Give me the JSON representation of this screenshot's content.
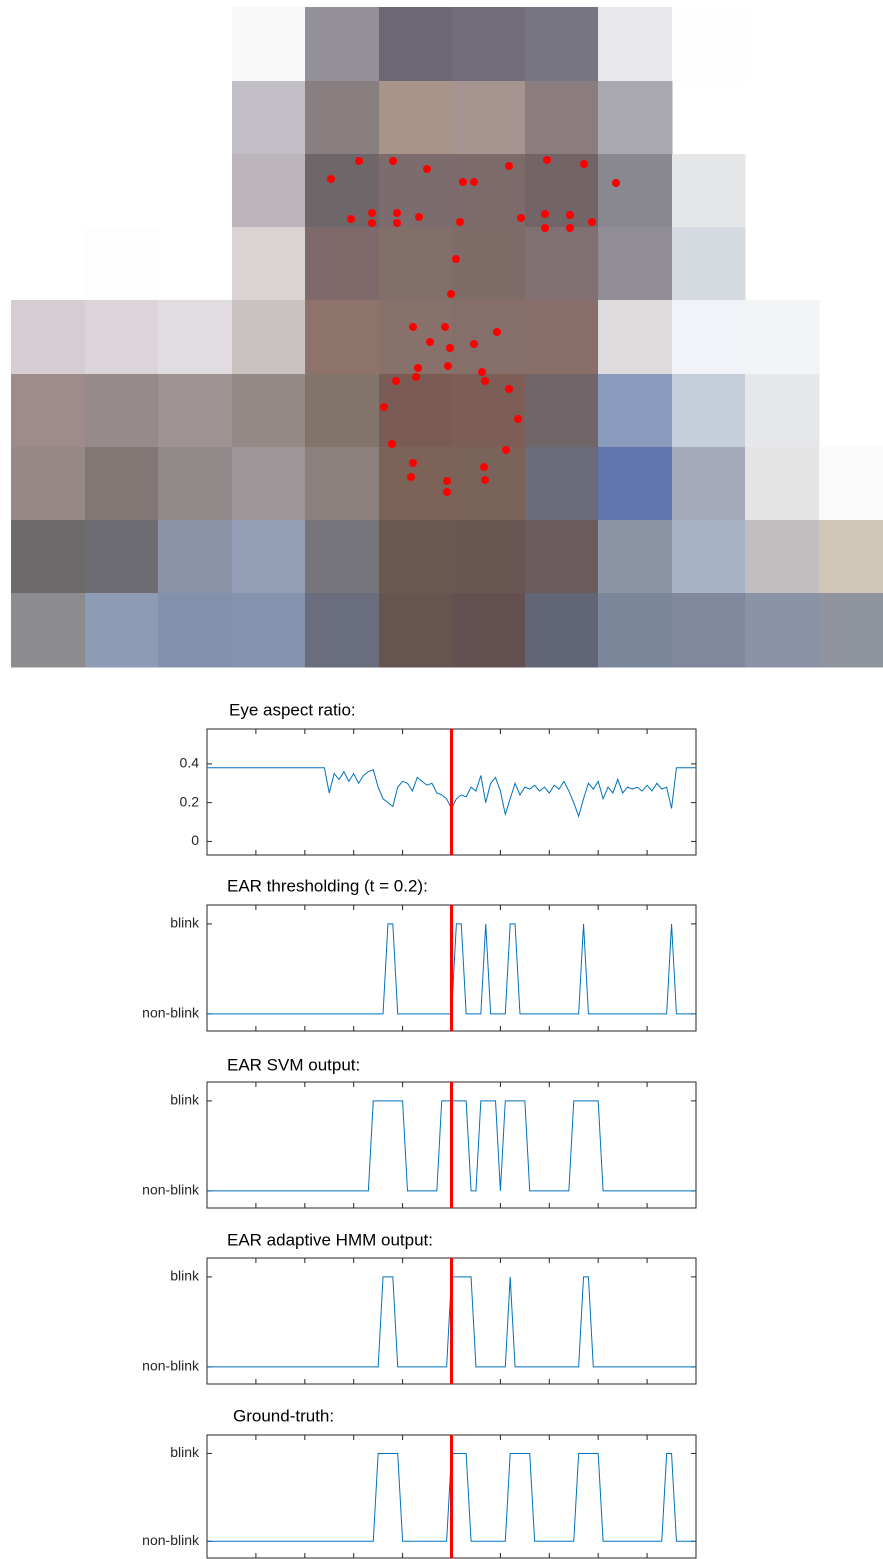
{
  "chart_data": [
    {
      "type": "line",
      "title": "Eye aspect ratio:",
      "color": "#0072bd",
      "cursor_x": 50,
      "cursor_color": "#ff0000",
      "xlim": [
        0,
        100
      ],
      "xticks": [
        0,
        10,
        20,
        30,
        40,
        50,
        60,
        70,
        80,
        90,
        100
      ],
      "ylim": [
        -0.07,
        0.58
      ],
      "yticks": [
        0,
        0.2,
        0.4
      ],
      "values": [
        0.38,
        0.38,
        0.38,
        0.38,
        0.38,
        0.38,
        0.38,
        0.38,
        0.38,
        0.38,
        0.38,
        0.38,
        0.38,
        0.38,
        0.38,
        0.38,
        0.38,
        0.38,
        0.38,
        0.38,
        0.38,
        0.38,
        0.38,
        0.38,
        0.38,
        0.25,
        0.35,
        0.32,
        0.36,
        0.31,
        0.35,
        0.3,
        0.34,
        0.36,
        0.37,
        0.28,
        0.22,
        0.2,
        0.18,
        0.28,
        0.31,
        0.3,
        0.26,
        0.33,
        0.31,
        0.29,
        0.3,
        0.25,
        0.24,
        0.22,
        0.17,
        0.22,
        0.24,
        0.23,
        0.28,
        0.26,
        0.34,
        0.2,
        0.3,
        0.33,
        0.26,
        0.14,
        0.22,
        0.3,
        0.24,
        0.28,
        0.27,
        0.29,
        0.26,
        0.28,
        0.25,
        0.29,
        0.27,
        0.31,
        0.26,
        0.2,
        0.13,
        0.22,
        0.3,
        0.27,
        0.31,
        0.22,
        0.28,
        0.25,
        0.32,
        0.25,
        0.28,
        0.27,
        0.28,
        0.26,
        0.29,
        0.26,
        0.3,
        0.27,
        0.28,
        0.17,
        0.38,
        0.38,
        0.38,
        0.38,
        0.38
      ]
    },
    {
      "type": "line",
      "title": "EAR thresholding (t = 0.2):",
      "color": "#0072bd",
      "cursor_x": 50,
      "cursor_color": "#ff0000",
      "xlim": [
        0,
        100
      ],
      "xticks": [
        0,
        10,
        20,
        30,
        40,
        50,
        60,
        70,
        80,
        90,
        100
      ],
      "ylim": [
        -0.19,
        1.21
      ],
      "yticks": [
        {
          "value": 0,
          "label": "non-blink"
        },
        {
          "value": 1,
          "label": "blink"
        }
      ],
      "values": [
        0,
        0,
        0,
        0,
        0,
        0,
        0,
        0,
        0,
        0,
        0,
        0,
        0,
        0,
        0,
        0,
        0,
        0,
        0,
        0,
        0,
        0,
        0,
        0,
        0,
        0,
        0,
        0,
        0,
        0,
        0,
        0,
        0,
        0,
        0,
        0,
        0,
        1,
        1,
        0,
        0,
        0,
        0,
        0,
        0,
        0,
        0,
        0,
        0,
        0,
        0,
        1,
        1,
        0,
        0,
        0,
        0,
        1,
        0,
        0,
        0,
        0,
        1,
        1,
        0,
        0,
        0,
        0,
        0,
        0,
        0,
        0,
        0,
        0,
        0,
        0,
        0,
        1,
        0,
        0,
        0,
        0,
        0,
        0,
        0,
        0,
        0,
        0,
        0,
        0,
        0,
        0,
        0,
        0,
        0,
        1,
        0,
        0,
        0,
        0,
        0
      ]
    },
    {
      "type": "line",
      "title": "EAR SVM output:",
      "color": "#0072bd",
      "cursor_x": 50,
      "cursor_color": "#ff0000",
      "xlim": [
        0,
        100
      ],
      "xticks": [
        0,
        10,
        20,
        30,
        40,
        50,
        60,
        70,
        80,
        90,
        100
      ],
      "ylim": [
        -0.19,
        1.21
      ],
      "yticks": [
        {
          "value": 0,
          "label": "non-blink"
        },
        {
          "value": 1,
          "label": "blink"
        }
      ],
      "values": [
        0,
        0,
        0,
        0,
        0,
        0,
        0,
        0,
        0,
        0,
        0,
        0,
        0,
        0,
        0,
        0,
        0,
        0,
        0,
        0,
        0,
        0,
        0,
        0,
        0,
        0,
        0,
        0,
        0,
        0,
        0,
        0,
        0,
        0,
        1,
        1,
        1,
        1,
        1,
        1,
        1,
        0,
        0,
        0,
        0,
        0,
        0,
        0,
        1,
        1,
        1,
        1,
        1,
        1,
        0,
        0,
        1,
        1,
        1,
        1,
        0,
        1,
        1,
        1,
        1,
        1,
        0,
        0,
        0,
        0,
        0,
        0,
        0,
        0,
        0,
        1,
        1,
        1,
        1,
        1,
        1,
        0,
        0,
        0,
        0,
        0,
        0,
        0,
        0,
        0,
        0,
        0,
        0,
        0,
        0,
        0,
        0,
        0,
        0,
        0,
        0
      ]
    },
    {
      "type": "line",
      "title": "EAR adaptive HMM output:",
      "color": "#0072bd",
      "cursor_x": 50,
      "cursor_color": "#ff0000",
      "xlim": [
        0,
        100
      ],
      "xticks": [
        0,
        10,
        20,
        30,
        40,
        50,
        60,
        70,
        80,
        90,
        100
      ],
      "ylim": [
        -0.19,
        1.21
      ],
      "yticks": [
        {
          "value": 0,
          "label": "non-blink"
        },
        {
          "value": 1,
          "label": "blink"
        }
      ],
      "values": [
        0,
        0,
        0,
        0,
        0,
        0,
        0,
        0,
        0,
        0,
        0,
        0,
        0,
        0,
        0,
        0,
        0,
        0,
        0,
        0,
        0,
        0,
        0,
        0,
        0,
        0,
        0,
        0,
        0,
        0,
        0,
        0,
        0,
        0,
        0,
        0,
        1,
        1,
        1,
        0,
        0,
        0,
        0,
        0,
        0,
        0,
        0,
        0,
        0,
        0,
        1,
        1,
        1,
        1,
        1,
        0,
        0,
        0,
        0,
        0,
        0,
        0,
        1,
        0,
        0,
        0,
        0,
        0,
        0,
        0,
        0,
        0,
        0,
        0,
        0,
        0,
        0,
        1,
        1,
        0,
        0,
        0,
        0,
        0,
        0,
        0,
        0,
        0,
        0,
        0,
        0,
        0,
        0,
        0,
        0,
        0,
        0,
        0,
        0,
        0,
        0
      ]
    },
    {
      "type": "line",
      "title": "Ground-truth:",
      "color": "#0072bd",
      "cursor_x": 50,
      "cursor_color": "#ff0000",
      "xlim": [
        0,
        100
      ],
      "xticks": [
        0,
        10,
        20,
        30,
        40,
        50,
        60,
        70,
        80,
        90,
        100
      ],
      "ylim": [
        -0.19,
        1.21
      ],
      "yticks": [
        {
          "value": 0,
          "label": "non-blink"
        },
        {
          "value": 1,
          "label": "blink"
        }
      ],
      "values": [
        0,
        0,
        0,
        0,
        0,
        0,
        0,
        0,
        0,
        0,
        0,
        0,
        0,
        0,
        0,
        0,
        0,
        0,
        0,
        0,
        0,
        0,
        0,
        0,
        0,
        0,
        0,
        0,
        0,
        0,
        0,
        0,
        0,
        0,
        0,
        1,
        1,
        1,
        1,
        1,
        0,
        0,
        0,
        0,
        0,
        0,
        0,
        0,
        0,
        0,
        1,
        1,
        1,
        1,
        0,
        0,
        0,
        0,
        0,
        0,
        0,
        0,
        1,
        1,
        1,
        1,
        1,
        0,
        0,
        0,
        0,
        0,
        0,
        0,
        0,
        0,
        1,
        1,
        1,
        1,
        1,
        0,
        0,
        0,
        0,
        0,
        0,
        0,
        0,
        0,
        0,
        0,
        0,
        0,
        1,
        1,
        0,
        0,
        0,
        0,
        0
      ]
    }
  ]
}
